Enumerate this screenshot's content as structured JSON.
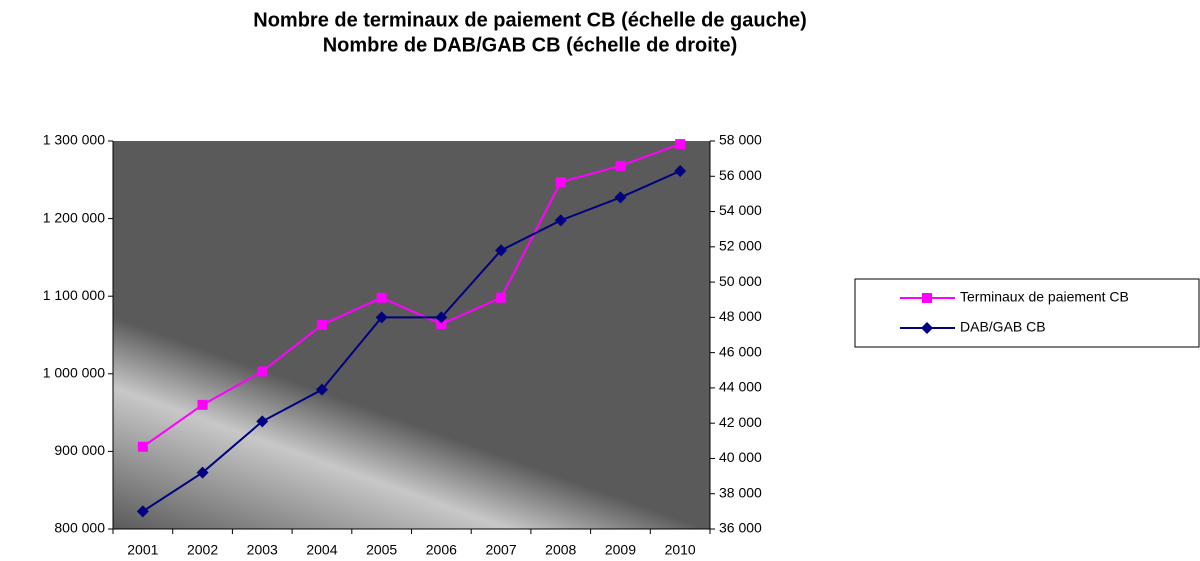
{
  "chart_data": {
    "type": "line",
    "title": [
      "Nombre de terminaux de paiement CB (échelle de gauche)",
      "Nombre de DAB/GAB CB (échelle de droite)"
    ],
    "categories": [
      "2001",
      "2002",
      "2003",
      "2004",
      "2005",
      "2006",
      "2007",
      "2008",
      "2009",
      "2010"
    ],
    "series": [
      {
        "name": "Terminaux de paiement CB",
        "color": "#ff00ff",
        "marker": "square",
        "values": [
          906000,
          960000,
          1003000,
          1063000,
          1098000,
          1064000,
          1098000,
          1247000,
          1268000,
          1296000
        ]
      },
      {
        "name": "DAB/GAB CB",
        "color": "#000080",
        "marker": "diamond",
        "axis": "y2",
        "values": [
          37000,
          39200,
          42100,
          43900,
          48000,
          48000,
          51800,
          53500,
          54800,
          56300
        ]
      }
    ],
    "ylim": [
      800000,
      1300000
    ],
    "yticks": [
      {
        "value": 800000,
        "label": "800 000"
      },
      {
        "value": 900000,
        "label": "900 000"
      },
      {
        "value": 1000000,
        "label": "1 000 000"
      },
      {
        "value": 1100000,
        "label": "1 100 000"
      },
      {
        "value": 1200000,
        "label": "1 200 000"
      },
      {
        "value": 1300000,
        "label": "1 300 000"
      }
    ],
    "y2lim": [
      36000,
      58000
    ],
    "y2ticks": [
      {
        "value": 36000,
        "label": "36 000"
      },
      {
        "value": 38000,
        "label": "38 000"
      },
      {
        "value": 40000,
        "label": "40 000"
      },
      {
        "value": 42000,
        "label": "42 000"
      },
      {
        "value": 44000,
        "label": "44 000"
      },
      {
        "value": 46000,
        "label": "46 000"
      },
      {
        "value": 48000,
        "label": "48 000"
      },
      {
        "value": 50000,
        "label": "50 000"
      },
      {
        "value": 52000,
        "label": "52 000"
      },
      {
        "value": 54000,
        "label": "54 000"
      },
      {
        "value": 56000,
        "label": "56 000"
      },
      {
        "value": 58000,
        "label": "58 000"
      }
    ],
    "grid": false,
    "legend": "right"
  }
}
